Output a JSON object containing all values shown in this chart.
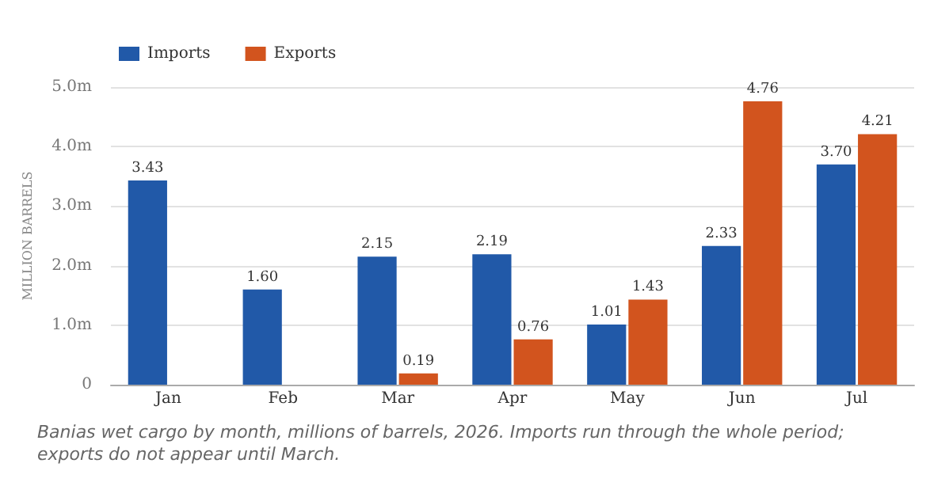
{
  "chart_data": {
    "type": "bar",
    "ylabel": "MILLION BARRELS",
    "categories": [
      "Jan",
      "Feb",
      "Mar",
      "Apr",
      "May",
      "Jun",
      "Jul"
    ],
    "series": [
      {
        "name": "Imports",
        "color": "#2159a8",
        "values": [
          3.43,
          1.6,
          2.15,
          2.19,
          1.01,
          2.33,
          3.7
        ]
      },
      {
        "name": "Exports",
        "color": "#d2541e",
        "values": [
          null,
          null,
          0.19,
          0.76,
          1.43,
          4.76,
          4.21
        ]
      }
    ],
    "ylim": [
      0,
      5
    ],
    "yticks": [
      0,
      {
        "value": 1,
        "label": "1.0m"
      },
      {
        "value": 2,
        "label": "2.0m"
      },
      {
        "value": 3,
        "label": "3.0m"
      },
      {
        "value": 4,
        "label": "4.0m"
      },
      {
        "value": 5,
        "label": "5.0m"
      }
    ],
    "value_labels": [
      [
        "3.43",
        "1.60",
        "2.15",
        "2.19",
        "1.01",
        "2.33",
        "3.70"
      ],
      [
        null,
        null,
        "0.19",
        "0.76",
        "1.43",
        "4.76",
        "4.21"
      ]
    ],
    "grid": "y",
    "legend": "top left",
    "annotations": [
      "Banias wet cargo by month, millions of barrels, 2026. Imports run through the whole period; exports do not appear until March."
    ]
  }
}
